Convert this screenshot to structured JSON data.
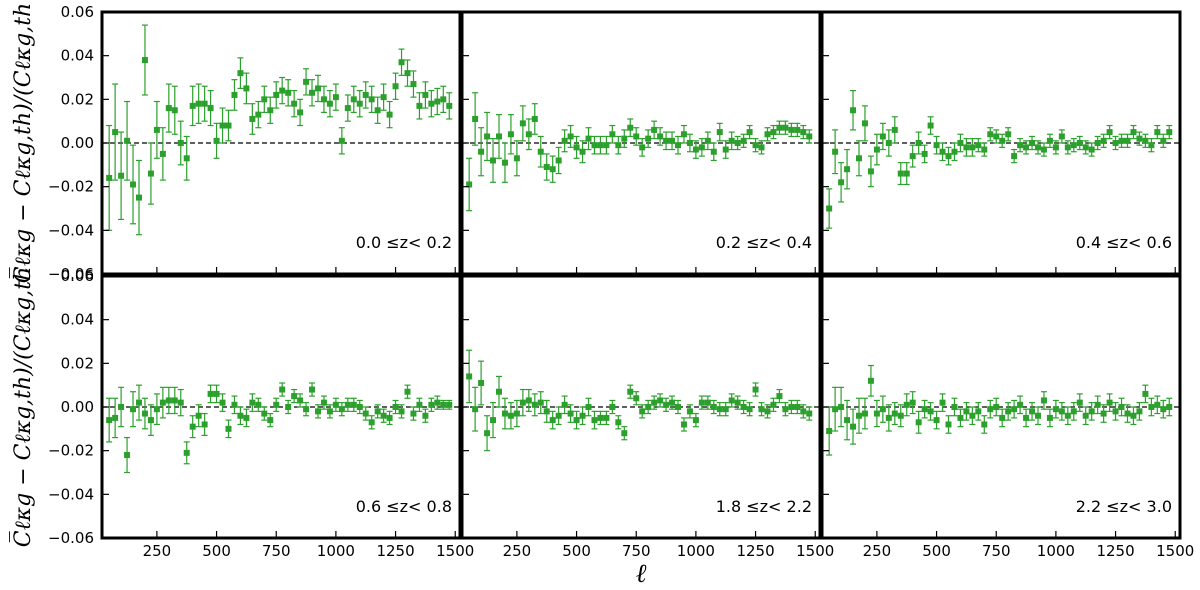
{
  "figure": {
    "ylabel_top": "C̅ℓκg − Cℓκg,th)/(Cℓκg,th",
    "ylabel_bottom": "C̅ℓκg − Cℓκg,th)/(Cℓκg,th",
    "xlabel": "ℓ"
  },
  "chart_data": {
    "type": "scatter",
    "title": "",
    "xlabel": "ℓ",
    "ylabel": "(C̅ℓκg − Cℓκg,th)/(Cℓκg,th)",
    "xlim": [
      20,
      1520
    ],
    "ylim": [
      -0.06,
      0.06
    ],
    "xticks": [
      250,
      500,
      750,
      1000,
      1250,
      1500
    ],
    "xtick_labels": [
      "250",
      "500",
      "750",
      "1000",
      "1250",
      "1500"
    ],
    "yticks": [
      -0.06,
      -0.04,
      -0.02,
      0.0,
      0.02,
      0.04,
      0.06
    ],
    "ytick_labels": [
      "−0.06",
      "−0.04",
      "−0.02",
      "0.00",
      "0.02",
      "0.04",
      "0.06"
    ],
    "marker_color": "#2ca02c",
    "reference_line": {
      "y": 0.0,
      "style": "dashed",
      "color": "#000000"
    },
    "grid": false,
    "ell": [
      50,
      75,
      100,
      125,
      150,
      175,
      200,
      225,
      250,
      275,
      300,
      325,
      350,
      375,
      400,
      425,
      450,
      475,
      500,
      525,
      550,
      575,
      600,
      625,
      650,
      675,
      700,
      725,
      750,
      775,
      800,
      825,
      850,
      875,
      900,
      925,
      950,
      975,
      1000,
      1025,
      1050,
      1075,
      1100,
      1125,
      1150,
      1175,
      1200,
      1225,
      1250,
      1275,
      1300,
      1325,
      1350,
      1375,
      1400,
      1425,
      1450,
      1475
    ],
    "panels": [
      {
        "label": "0.0  ≤z<  0.2",
        "y": [
          -0.016,
          0.005,
          -0.015,
          0.001,
          -0.019,
          -0.025,
          0.038,
          -0.014,
          0.006,
          -0.005,
          0.016,
          0.015,
          0.0,
          -0.007,
          0.017,
          0.018,
          0.018,
          0.016,
          0.001,
          0.008,
          0.008,
          0.022,
          0.032,
          0.025,
          0.011,
          0.013,
          0.02,
          0.015,
          0.022,
          0.024,
          0.023,
          0.018,
          0.014,
          0.028,
          0.023,
          0.025,
          0.02,
          0.018,
          0.021,
          0.001,
          0.016,
          0.02,
          0.018,
          0.022,
          0.02,
          0.015,
          0.021,
          0.013,
          0.026,
          0.037,
          0.032,
          0.027,
          0.017,
          0.022,
          0.018,
          0.019,
          0.02,
          0.017
        ],
        "err": [
          0.024,
          0.022,
          0.02,
          0.018,
          0.018,
          0.017,
          0.016,
          0.014,
          0.013,
          0.012,
          0.011,
          0.011,
          0.01,
          0.01,
          0.009,
          0.009,
          0.008,
          0.008,
          0.008,
          0.008,
          0.007,
          0.007,
          0.007,
          0.007,
          0.007,
          0.006,
          0.006,
          0.006,
          0.006,
          0.006,
          0.006,
          0.006,
          0.006,
          0.006,
          0.006,
          0.006,
          0.006,
          0.006,
          0.006,
          0.006,
          0.006,
          0.006,
          0.006,
          0.006,
          0.006,
          0.006,
          0.006,
          0.006,
          0.006,
          0.006,
          0.006,
          0.006,
          0.006,
          0.006,
          0.006,
          0.006,
          0.006,
          0.006
        ]
      },
      {
        "label": "0.2  ≤z<  0.4",
        "y": [
          -0.019,
          0.011,
          -0.004,
          0.003,
          -0.008,
          0.003,
          -0.009,
          0.004,
          -0.007,
          0.009,
          0.004,
          0.011,
          -0.004,
          -0.011,
          -0.012,
          -0.008,
          0.001,
          0.003,
          -0.002,
          -0.004,
          0.002,
          -0.001,
          -0.001,
          -0.001,
          0.004,
          -0.001,
          0.002,
          0.007,
          0.003,
          -0.002,
          0.002,
          0.006,
          0.003,
          0.001,
          0.001,
          -0.001,
          0.004,
          0.0,
          -0.003,
          -0.002,
          0.001,
          -0.004,
          0.005,
          -0.003,
          0.001,
          0.0,
          0.001,
          0.005,
          -0.001,
          -0.002,
          0.004,
          0.005,
          0.007,
          0.007,
          0.006,
          0.006,
          0.005,
          0.003
        ],
        "err": [
          0.012,
          0.012,
          0.011,
          0.011,
          0.01,
          0.01,
          0.009,
          0.009,
          0.008,
          0.008,
          0.007,
          0.007,
          0.007,
          0.006,
          0.006,
          0.006,
          0.005,
          0.005,
          0.005,
          0.005,
          0.005,
          0.004,
          0.004,
          0.004,
          0.004,
          0.004,
          0.004,
          0.004,
          0.004,
          0.004,
          0.004,
          0.004,
          0.004,
          0.004,
          0.004,
          0.004,
          0.004,
          0.004,
          0.004,
          0.004,
          0.004,
          0.004,
          0.004,
          0.004,
          0.004,
          0.003,
          0.003,
          0.003,
          0.003,
          0.003,
          0.003,
          0.003,
          0.003,
          0.003,
          0.003,
          0.003,
          0.003,
          0.003
        ]
      },
      {
        "label": "0.4  ≤z<  0.6",
        "y": [
          -0.03,
          -0.004,
          -0.018,
          -0.012,
          0.015,
          -0.007,
          0.009,
          -0.013,
          -0.003,
          0.003,
          0.0,
          0.006,
          -0.014,
          -0.014,
          -0.006,
          0.0,
          -0.005,
          0.008,
          -0.001,
          -0.004,
          -0.006,
          -0.004,
          0.0,
          -0.002,
          -0.002,
          -0.001,
          -0.003,
          0.004,
          0.003,
          0.001,
          0.004,
          -0.006,
          -0.001,
          -0.002,
          0.0,
          -0.002,
          -0.003,
          0.001,
          -0.002,
          0.003,
          -0.002,
          -0.001,
          0.0,
          -0.002,
          -0.003,
          0.0,
          0.001,
          0.005,
          0.0,
          0.001,
          0.001,
          0.005,
          0.002,
          0.001,
          -0.001,
          0.005,
          0.001,
          0.005
        ],
        "err": [
          0.009,
          0.01,
          0.009,
          0.009,
          0.009,
          0.008,
          0.008,
          0.007,
          0.007,
          0.006,
          0.006,
          0.006,
          0.005,
          0.005,
          0.005,
          0.005,
          0.004,
          0.004,
          0.004,
          0.004,
          0.004,
          0.004,
          0.004,
          0.004,
          0.004,
          0.003,
          0.003,
          0.003,
          0.003,
          0.003,
          0.003,
          0.003,
          0.003,
          0.003,
          0.003,
          0.003,
          0.003,
          0.003,
          0.003,
          0.003,
          0.003,
          0.003,
          0.003,
          0.003,
          0.003,
          0.003,
          0.003,
          0.003,
          0.003,
          0.003,
          0.003,
          0.003,
          0.003,
          0.003,
          0.003,
          0.003,
          0.003,
          0.003
        ]
      },
      {
        "label": "0.6  ≤z<  0.8",
        "y": [
          -0.006,
          -0.005,
          0.0,
          -0.022,
          -0.001,
          0.002,
          -0.003,
          -0.006,
          -0.001,
          0.002,
          0.003,
          0.003,
          0.002,
          -0.021,
          -0.009,
          -0.004,
          -0.008,
          0.006,
          0.006,
          0.002,
          -0.01,
          0.001,
          -0.004,
          -0.005,
          0.002,
          0.001,
          -0.003,
          -0.006,
          0.001,
          0.008,
          0.0,
          0.005,
          0.003,
          -0.001,
          0.008,
          -0.002,
          0.002,
          -0.002,
          0.001,
          -0.001,
          0.001,
          0.001,
          0.0,
          -0.003,
          -0.007,
          -0.002,
          -0.004,
          -0.005,
          0.0,
          -0.002,
          0.007,
          -0.003,
          0.001,
          -0.004,
          0.001,
          0.002,
          0.001,
          0.001
        ],
        "err": [
          0.01,
          0.009,
          0.009,
          0.008,
          0.008,
          0.008,
          0.007,
          0.007,
          0.007,
          0.007,
          0.006,
          0.006,
          0.006,
          0.005,
          0.005,
          0.005,
          0.005,
          0.004,
          0.004,
          0.004,
          0.004,
          0.004,
          0.004,
          0.004,
          0.004,
          0.003,
          0.003,
          0.003,
          0.003,
          0.003,
          0.003,
          0.003,
          0.003,
          0.003,
          0.003,
          0.003,
          0.003,
          0.003,
          0.003,
          0.003,
          0.003,
          0.003,
          0.003,
          0.003,
          0.003,
          0.003,
          0.003,
          0.003,
          0.003,
          0.003,
          0.003,
          0.003,
          0.003,
          0.003,
          0.003,
          0.003,
          0.002,
          0.002
        ]
      },
      {
        "label": "1.8  ≤z<  2.2",
        "y": [
          0.014,
          -0.001,
          0.011,
          -0.012,
          -0.006,
          0.007,
          -0.003,
          -0.004,
          -0.003,
          0.002,
          0.003,
          0.001,
          0.002,
          -0.002,
          -0.006,
          -0.004,
          0.001,
          -0.003,
          -0.006,
          -0.004,
          0.0,
          -0.006,
          -0.005,
          -0.005,
          0.0,
          -0.007,
          -0.012,
          0.007,
          0.004,
          -0.002,
          0.0,
          0.002,
          0.003,
          0.001,
          0.002,
          0.0,
          -0.008,
          -0.002,
          -0.006,
          0.002,
          0.002,
          0.0,
          -0.001,
          -0.001,
          0.003,
          0.002,
          0.0,
          -0.001,
          0.008,
          -0.001,
          -0.002,
          0.001,
          0.005,
          -0.001,
          0.0,
          0.0,
          -0.002,
          -0.003
        ],
        "err": [
          0.012,
          0.01,
          0.01,
          0.008,
          0.008,
          0.007,
          0.007,
          0.006,
          0.006,
          0.006,
          0.005,
          0.005,
          0.005,
          0.005,
          0.004,
          0.004,
          0.004,
          0.004,
          0.004,
          0.004,
          0.004,
          0.004,
          0.003,
          0.003,
          0.003,
          0.003,
          0.003,
          0.003,
          0.003,
          0.003,
          0.003,
          0.003,
          0.003,
          0.003,
          0.003,
          0.003,
          0.003,
          0.003,
          0.003,
          0.003,
          0.003,
          0.003,
          0.003,
          0.003,
          0.003,
          0.003,
          0.003,
          0.003,
          0.003,
          0.003,
          0.003,
          0.003,
          0.003,
          0.003,
          0.003,
          0.003,
          0.003,
          0.003
        ]
      },
      {
        "label": "2.2  ≤z<  3.0",
        "y": [
          -0.011,
          -0.001,
          0.0,
          -0.006,
          -0.009,
          -0.004,
          -0.003,
          0.012,
          -0.003,
          -0.001,
          -0.005,
          -0.003,
          -0.004,
          0.001,
          0.002,
          -0.007,
          -0.001,
          -0.002,
          -0.006,
          0.002,
          -0.008,
          0.0,
          -0.005,
          -0.002,
          -0.004,
          -0.002,
          -0.008,
          -0.001,
          0.0,
          -0.005,
          -0.002,
          -0.001,
          0.001,
          -0.005,
          -0.002,
          -0.004,
          0.003,
          -0.005,
          -0.001,
          -0.002,
          -0.004,
          -0.002,
          0.002,
          -0.004,
          -0.002,
          0.001,
          -0.003,
          0.002,
          -0.002,
          0.0,
          -0.003,
          -0.004,
          -0.002,
          0.006,
          0.0,
          0.001,
          -0.001,
          0.0
        ],
        "err": [
          0.011,
          0.01,
          0.009,
          0.009,
          0.008,
          0.008,
          0.007,
          0.007,
          0.006,
          0.006,
          0.006,
          0.005,
          0.005,
          0.005,
          0.005,
          0.005,
          0.004,
          0.004,
          0.004,
          0.004,
          0.004,
          0.004,
          0.004,
          0.004,
          0.004,
          0.004,
          0.004,
          0.004,
          0.004,
          0.004,
          0.004,
          0.004,
          0.004,
          0.004,
          0.004,
          0.004,
          0.004,
          0.004,
          0.004,
          0.004,
          0.004,
          0.004,
          0.004,
          0.004,
          0.004,
          0.004,
          0.004,
          0.004,
          0.004,
          0.004,
          0.004,
          0.004,
          0.004,
          0.004,
          0.004,
          0.004,
          0.004,
          0.004
        ]
      }
    ]
  }
}
